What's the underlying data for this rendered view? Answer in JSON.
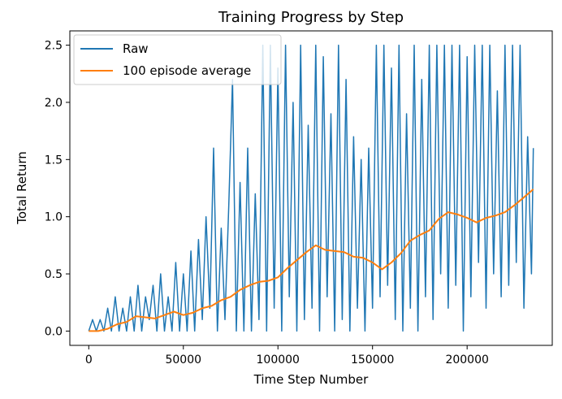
{
  "chart_data": {
    "type": "line",
    "title": "Training Progress by Step",
    "xlabel": "Time Step Number",
    "ylabel": "Total Return",
    "xlim": [
      -10000,
      245000
    ],
    "ylim": [
      -0.125,
      2.625
    ],
    "x_ticks": [
      0,
      50000,
      100000,
      150000,
      200000
    ],
    "x_tick_labels": [
      "0",
      "50000",
      "100000",
      "150000",
      "200000"
    ],
    "y_ticks": [
      0.0,
      0.5,
      1.0,
      1.5,
      2.0,
      2.5
    ],
    "y_tick_labels": [
      "0.0",
      "0.5",
      "1.0",
      "1.5",
      "2.0",
      "2.5"
    ],
    "grid": false,
    "legend_position": "upper-left",
    "series": [
      {
        "name": "Raw",
        "color": "#1f77b4",
        "x": [
          0,
          2000,
          4000,
          6000,
          8000,
          10000,
          12000,
          14000,
          16000,
          18000,
          20000,
          22000,
          24000,
          26000,
          28000,
          30000,
          32000,
          34000,
          36000,
          38000,
          40000,
          42000,
          44000,
          46000,
          48000,
          50000,
          52000,
          54000,
          56000,
          58000,
          60000,
          62000,
          64000,
          66000,
          68000,
          70000,
          72000,
          74000,
          76000,
          78000,
          80000,
          82000,
          84000,
          86000,
          88000,
          90000,
          92000,
          94000,
          96000,
          98000,
          100000,
          102000,
          104000,
          106000,
          108000,
          110000,
          112000,
          114000,
          116000,
          118000,
          120000,
          122000,
          124000,
          126000,
          128000,
          130000,
          132000,
          134000,
          136000,
          138000,
          140000,
          142000,
          144000,
          146000,
          148000,
          150000,
          152000,
          154000,
          156000,
          158000,
          160000,
          162000,
          164000,
          166000,
          168000,
          170000,
          172000,
          174000,
          176000,
          178000,
          180000,
          182000,
          184000,
          186000,
          188000,
          190000,
          192000,
          194000,
          196000,
          198000,
          200000,
          202000,
          204000,
          206000,
          208000,
          210000,
          212000,
          214000,
          216000,
          218000,
          220000,
          222000,
          224000,
          226000,
          228000,
          230000,
          232000,
          234000,
          235000
        ],
        "y": [
          0.0,
          0.1,
          0.0,
          0.1,
          0.0,
          0.2,
          0.0,
          0.3,
          0.0,
          0.2,
          0.0,
          0.3,
          0.0,
          0.4,
          0.0,
          0.3,
          0.1,
          0.4,
          0.0,
          0.5,
          0.0,
          0.3,
          0.0,
          0.6,
          0.0,
          0.5,
          0.0,
          0.7,
          0.0,
          0.8,
          0.1,
          1.0,
          0.2,
          1.6,
          0.0,
          0.9,
          0.1,
          1.1,
          2.2,
          0.0,
          1.3,
          0.0,
          1.6,
          0.0,
          1.2,
          0.1,
          2.5,
          0.0,
          2.5,
          0.2,
          2.3,
          0.0,
          2.5,
          0.3,
          2.0,
          0.0,
          2.5,
          0.1,
          1.8,
          0.2,
          2.5,
          0.0,
          2.4,
          0.3,
          1.9,
          0.0,
          2.5,
          0.1,
          2.2,
          0.0,
          1.7,
          0.2,
          1.5,
          0.0,
          1.6,
          0.2,
          2.5,
          0.3,
          2.5,
          0.4,
          2.3,
          0.1,
          2.5,
          0.0,
          1.9,
          0.2,
          2.5,
          0.0,
          2.2,
          0.3,
          2.5,
          0.1,
          2.5,
          0.5,
          2.5,
          0.2,
          2.5,
          0.4,
          2.5,
          0.0,
          2.4,
          0.3,
          2.5,
          0.6,
          2.5,
          0.2,
          2.5,
          0.5,
          2.1,
          0.3,
          2.5,
          0.4,
          2.5,
          0.6,
          2.5,
          0.2,
          1.7,
          0.5,
          1.6
        ]
      },
      {
        "name": "100 episode average",
        "color": "#ff7f0e",
        "x": [
          0,
          5000,
          10000,
          15000,
          20000,
          25000,
          30000,
          35000,
          40000,
          45000,
          50000,
          55000,
          60000,
          65000,
          70000,
          75000,
          80000,
          85000,
          90000,
          95000,
          100000,
          105000,
          110000,
          115000,
          120000,
          125000,
          130000,
          135000,
          140000,
          145000,
          150000,
          155000,
          160000,
          165000,
          170000,
          175000,
          180000,
          185000,
          190000,
          195000,
          200000,
          205000,
          210000,
          215000,
          220000,
          225000,
          230000,
          235000
        ],
        "y": [
          0.0,
          0.0,
          0.02,
          0.06,
          0.08,
          0.13,
          0.12,
          0.11,
          0.14,
          0.17,
          0.14,
          0.16,
          0.2,
          0.22,
          0.27,
          0.3,
          0.36,
          0.4,
          0.43,
          0.44,
          0.47,
          0.55,
          0.62,
          0.69,
          0.75,
          0.71,
          0.7,
          0.69,
          0.65,
          0.64,
          0.6,
          0.54,
          0.6,
          0.68,
          0.79,
          0.84,
          0.88,
          0.98,
          1.04,
          1.02,
          0.99,
          0.95,
          0.99,
          1.01,
          1.04,
          1.1,
          1.17,
          1.24
        ]
      }
    ]
  }
}
